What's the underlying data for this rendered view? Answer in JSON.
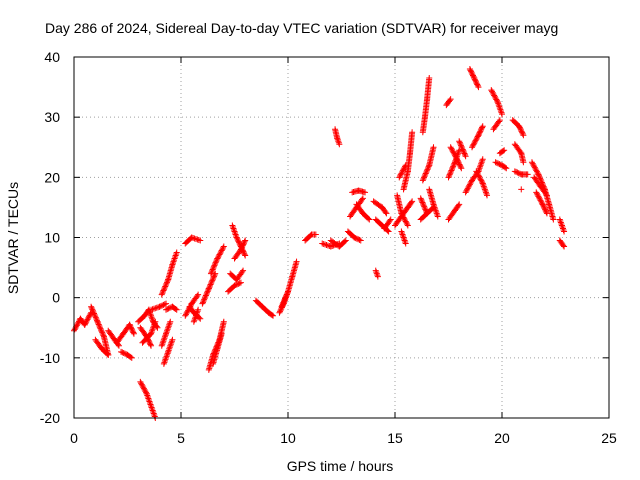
{
  "chart_data": {
    "type": "scatter",
    "title": "Day 286 of 2024, Sidereal Day-to-day VTEC variation (SDTVAR) for receiver mayg",
    "xlabel": "GPS time / hours",
    "ylabel": "SDTVAR / TECUs",
    "xlim": [
      0,
      25
    ],
    "ylim": [
      -20,
      40
    ],
    "xticks": [
      "0",
      "5",
      "10",
      "15",
      "20",
      "25"
    ],
    "yticks": [
      "-20",
      "-10",
      "0",
      "10",
      "20",
      "30",
      "40"
    ],
    "grid": true,
    "marker": "plus",
    "color": "#ff0000",
    "series": [
      {
        "name": "SDTVAR",
        "arcs": [
          [
            [
              0.0,
              -5.5
            ],
            [
              0.3,
              -3.5
            ],
            [
              0.5,
              -4.5
            ],
            [
              0.8,
              -2.5
            ]
          ],
          [
            [
              0.8,
              -1.5
            ],
            [
              1.1,
              -4.0
            ],
            [
              1.4,
              -6.5
            ],
            [
              1.6,
              -9.5
            ]
          ],
          [
            [
              1.0,
              -7.0
            ],
            [
              1.3,
              -8.5
            ],
            [
              1.6,
              -9.5
            ]
          ],
          [
            [
              1.6,
              -5.5
            ],
            [
              1.9,
              -7.0
            ],
            [
              2.1,
              -8.0
            ]
          ],
          [
            [
              2.0,
              -7.5
            ],
            [
              2.3,
              -6.0
            ],
            [
              2.6,
              -4.5
            ],
            [
              2.8,
              -6.0
            ]
          ],
          [
            [
              2.2,
              -9.0
            ],
            [
              2.5,
              -9.5
            ],
            [
              2.7,
              -10.0
            ]
          ],
          [
            [
              3.0,
              -4.0
            ],
            [
              3.3,
              -3.0
            ],
            [
              3.5,
              -2.0
            ],
            [
              3.7,
              -4.0
            ],
            [
              3.9,
              -5.0
            ]
          ],
          [
            [
              3.2,
              -7.5
            ],
            [
              3.6,
              -6.0
            ],
            [
              3.8,
              -4.0
            ]
          ],
          [
            [
              3.1,
              -5.0
            ],
            [
              3.4,
              -6.5
            ],
            [
              3.6,
              -8.0
            ]
          ],
          [
            [
              3.1,
              -14.0
            ],
            [
              3.4,
              -16.0
            ],
            [
              3.6,
              -18.0
            ],
            [
              3.8,
              -20.0
            ]
          ],
          [
            [
              3.6,
              -2.0
            ],
            [
              4.0,
              -1.5
            ],
            [
              4.3,
              -1.0
            ]
          ],
          [
            [
              4.1,
              -8.0
            ],
            [
              4.3,
              -6.0
            ],
            [
              4.5,
              -4.0
            ]
          ],
          [
            [
              4.2,
              -11.0
            ],
            [
              4.4,
              -9.0
            ],
            [
              4.6,
              -7.0
            ]
          ],
          [
            [
              4.3,
              -2.0
            ],
            [
              4.6,
              -1.5
            ],
            [
              4.8,
              -2.0
            ]
          ],
          [
            [
              4.1,
              0.5
            ],
            [
              4.4,
              3.0
            ],
            [
              4.6,
              5.5
            ],
            [
              4.8,
              7.5
            ]
          ],
          [
            [
              5.2,
              -3.0
            ],
            [
              5.5,
              -1.0
            ],
            [
              5.8,
              0.5
            ]
          ],
          [
            [
              5.4,
              -1.5
            ],
            [
              5.6,
              -2.5
            ],
            [
              5.9,
              -3.5
            ]
          ],
          [
            [
              5.2,
              9.0
            ],
            [
              5.5,
              10.0
            ],
            [
              5.9,
              9.5
            ]
          ],
          [
            [
              5.6,
              -4.0
            ],
            [
              5.8,
              -2.0
            ]
          ],
          [
            [
              6.0,
              -1.0
            ],
            [
              6.3,
              1.5
            ],
            [
              6.6,
              4.0
            ]
          ],
          [
            [
              6.4,
              4.0
            ],
            [
              6.7,
              6.5
            ],
            [
              7.0,
              8.5
            ]
          ],
          [
            [
              6.3,
              -12.0
            ],
            [
              6.5,
              -9.5
            ],
            [
              6.8,
              -7.0
            ],
            [
              7.0,
              -4.0
            ]
          ],
          [
            [
              6.5,
              -11.0
            ],
            [
              6.7,
              -8.5
            ],
            [
              6.9,
              -6.0
            ]
          ],
          [
            [
              7.2,
              1.0
            ],
            [
              7.5,
              2.0
            ],
            [
              7.8,
              2.5
            ]
          ],
          [
            [
              7.3,
              4.0
            ],
            [
              7.6,
              3.0
            ],
            [
              7.9,
              4.5
            ]
          ],
          [
            [
              7.4,
              12.0
            ],
            [
              7.6,
              10.0
            ],
            [
              7.8,
              8.5
            ],
            [
              8.0,
              7.0
            ]
          ],
          [
            [
              7.5,
              6.5
            ],
            [
              7.8,
              8.0
            ],
            [
              8.0,
              9.5
            ]
          ],
          [
            [
              8.5,
              -0.5
            ],
            [
              8.8,
              -1.5
            ],
            [
              9.1,
              -2.5
            ],
            [
              9.3,
              -3.0
            ]
          ],
          [
            [
              9.6,
              -2.5
            ],
            [
              9.8,
              -1.0
            ],
            [
              10.0,
              1.0
            ]
          ],
          [
            [
              9.7,
              -1.5
            ],
            [
              10.0,
              1.0
            ],
            [
              10.2,
              3.5
            ],
            [
              10.4,
              6.0
            ]
          ],
          [
            [
              10.8,
              9.5
            ],
            [
              11.1,
              10.5
            ],
            [
              11.3,
              10.5
            ]
          ],
          [
            [
              11.6,
              9.0
            ],
            [
              12.0,
              8.5
            ],
            [
              12.4,
              9.0
            ]
          ],
          [
            [
              12.0,
              9.5
            ],
            [
              12.4,
              8.5
            ],
            [
              12.7,
              9.5
            ]
          ],
          [
            [
              12.2,
              28.0
            ],
            [
              12.3,
              26.5
            ],
            [
              12.4,
              25.5
            ]
          ],
          [
            [
              12.8,
              11.0
            ],
            [
              13.1,
              10.0
            ],
            [
              13.4,
              9.5
            ]
          ],
          [
            [
              12.9,
              13.5
            ],
            [
              13.2,
              15.0
            ],
            [
              13.5,
              16.5
            ]
          ],
          [
            [
              13.0,
              17.5
            ],
            [
              13.3,
              17.8
            ],
            [
              13.6,
              17.5
            ]
          ],
          [
            [
              13.2,
              15.5
            ],
            [
              13.5,
              14.0
            ],
            [
              13.8,
              13.0
            ]
          ],
          [
            [
              14.1,
              4.5
            ],
            [
              14.2,
              3.5
            ]
          ],
          [
            [
              14.0,
              16.0
            ],
            [
              14.4,
              15.0
            ],
            [
              14.6,
              14.0
            ]
          ],
          [
            [
              14.1,
              13.0
            ],
            [
              14.4,
              12.0
            ],
            [
              14.7,
              11.0
            ]
          ],
          [
            [
              14.5,
              11.5
            ],
            [
              14.8,
              13.0
            ]
          ],
          [
            [
              15.0,
              12.0
            ],
            [
              15.3,
              13.5
            ],
            [
              15.6,
              15.0
            ],
            [
              15.8,
              16.0
            ]
          ],
          [
            [
              15.1,
              17.0
            ],
            [
              15.3,
              14.0
            ],
            [
              15.6,
              12.0
            ]
          ],
          [
            [
              15.4,
              18.0
            ],
            [
              15.6,
              21.0
            ],
            [
              15.7,
              24.0
            ],
            [
              15.8,
              27.5
            ]
          ],
          [
            [
              15.3,
              11.0
            ],
            [
              15.5,
              9.0
            ]
          ],
          [
            [
              15.2,
              20.0
            ],
            [
              15.5,
              22.0
            ]
          ],
          [
            [
              16.2,
              13.0
            ],
            [
              16.5,
              14.0
            ],
            [
              16.8,
              15.0
            ]
          ],
          [
            [
              16.2,
              16.5
            ],
            [
              16.5,
              14.0
            ]
          ],
          [
            [
              16.3,
              19.5
            ],
            [
              16.6,
              22.0
            ],
            [
              16.8,
              25.0
            ]
          ],
          [
            [
              16.3,
              27.5
            ],
            [
              16.4,
              30.0
            ],
            [
              16.5,
              33.0
            ],
            [
              16.6,
              36.5
            ]
          ],
          [
            [
              16.6,
              18.0
            ],
            [
              16.8,
              15.5
            ],
            [
              17.0,
              13.5
            ]
          ],
          [
            [
              17.4,
              32.0
            ],
            [
              17.6,
              33.0
            ]
          ],
          [
            [
              17.5,
              13.0
            ],
            [
              17.8,
              14.5
            ],
            [
              18.0,
              15.5
            ]
          ],
          [
            [
              17.5,
              20.0
            ],
            [
              17.8,
              22.5
            ],
            [
              18.0,
              24.5
            ]
          ],
          [
            [
              17.6,
              25.0
            ],
            [
              17.9,
              23.0
            ],
            [
              18.1,
              21.5
            ]
          ],
          [
            [
              18.0,
              26.0
            ],
            [
              18.3,
              23.5
            ]
          ],
          [
            [
              18.3,
              17.5
            ],
            [
              18.6,
              19.5
            ],
            [
              18.9,
              21.0
            ],
            [
              19.1,
              23.0
            ]
          ],
          [
            [
              18.5,
              38.0
            ],
            [
              18.7,
              36.5
            ],
            [
              18.9,
              35.0
            ]
          ],
          [
            [
              18.6,
              25.0
            ],
            [
              18.9,
              27.0
            ],
            [
              19.1,
              28.5
            ]
          ],
          [
            [
              18.8,
              21.0
            ],
            [
              19.1,
              19.0
            ],
            [
              19.3,
              17.0
            ]
          ],
          [
            [
              19.5,
              34.5
            ],
            [
              19.8,
              32.5
            ],
            [
              20.0,
              30.5
            ]
          ],
          [
            [
              19.6,
              28.0
            ],
            [
              19.9,
              29.5
            ]
          ],
          [
            [
              19.7,
              22.5
            ],
            [
              20.0,
              22.0
            ],
            [
              20.2,
              21.5
            ]
          ],
          [
            [
              19.9,
              24.0
            ],
            [
              20.1,
              24.5
            ]
          ],
          [
            [
              20.5,
              29.5
            ],
            [
              20.8,
              28.5
            ],
            [
              21.0,
              27.0
            ]
          ],
          [
            [
              20.6,
              25.5
            ],
            [
              20.9,
              24.0
            ],
            [
              21.0,
              22.5
            ]
          ],
          [
            [
              20.6,
              21.0
            ],
            [
              20.9,
              20.5
            ],
            [
              21.2,
              20.5
            ]
          ],
          [
            [
              20.9,
              18.0
            ]
          ],
          [
            [
              21.4,
              22.5
            ],
            [
              21.7,
              20.5
            ],
            [
              22.0,
              18.0
            ],
            [
              22.2,
              15.5
            ],
            [
              22.4,
              13.0
            ]
          ],
          [
            [
              21.5,
              20.0
            ],
            [
              21.8,
              18.5
            ],
            [
              22.1,
              17.0
            ]
          ],
          [
            [
              21.6,
              17.5
            ],
            [
              21.9,
              15.5
            ],
            [
              22.1,
              14.0
            ]
          ],
          [
            [
              22.7,
              13.0
            ],
            [
              22.8,
              12.0
            ],
            [
              22.9,
              11.0
            ]
          ],
          [
            [
              22.7,
              9.5
            ],
            [
              22.9,
              8.5
            ]
          ]
        ]
      }
    ]
  }
}
